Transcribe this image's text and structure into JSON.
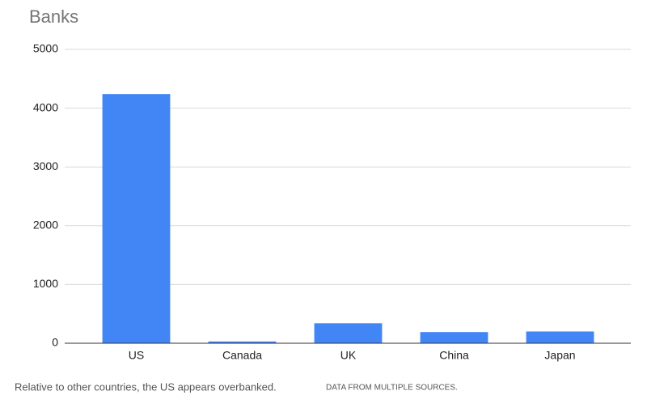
{
  "chart_data": {
    "type": "bar",
    "title": "Banks",
    "categories": [
      "US",
      "Canada",
      "UK",
      "China",
      "Japan"
    ],
    "values": [
      4240,
      30,
      340,
      190,
      200
    ],
    "color": "#4285f4",
    "ylim": [
      0,
      5000
    ],
    "yticks": [
      0,
      1000,
      2000,
      3000,
      4000,
      5000
    ],
    "grid": true,
    "caption": "Relative to other countries, the US appears overbanked.",
    "source": "DATA FROM MULTIPLE SOURCES."
  }
}
